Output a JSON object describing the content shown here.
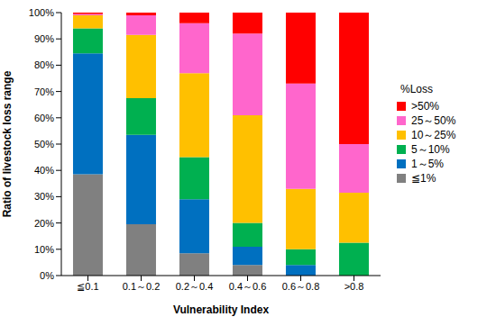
{
  "chart_data": {
    "type": "bar",
    "stacked": true,
    "grid": false,
    "legend": "right",
    "legend_title": "%Loss",
    "x_label": "Vulnerability Index",
    "y_label": "Ratio of livestock loss range",
    "categories": [
      "≦0.1",
      "0.1～0.2",
      "0.2～0.4",
      "0.4～0.6",
      "0.6～0.8",
      ">0.8"
    ],
    "ylim": [
      0,
      100
    ],
    "yticks": [
      {
        "value": 0,
        "label": "0%"
      },
      {
        "value": 10,
        "label": "10%"
      },
      {
        "value": 20,
        "label": "20%"
      },
      {
        "value": 30,
        "label": "30%"
      },
      {
        "value": 40,
        "label": "40%"
      },
      {
        "value": 50,
        "label": "50%"
      },
      {
        "value": 60,
        "label": "60%"
      },
      {
        "value": 70,
        "label": "70%"
      },
      {
        "value": 80,
        "label": "80%"
      },
      {
        "value": 90,
        "label": "90%"
      },
      {
        "value": 100,
        "label": "100%"
      }
    ],
    "series": [
      {
        "name": "≦1%",
        "color": "#808080",
        "values": [
          38.5,
          19.5,
          8.5,
          4,
          0,
          0
        ]
      },
      {
        "name": "1～5%",
        "color": "#0070c0",
        "values": [
          46,
          34,
          20.5,
          7,
          4,
          0
        ]
      },
      {
        "name": "5～10%",
        "color": "#00b050",
        "values": [
          9.5,
          14,
          16,
          9,
          6,
          12.5
        ]
      },
      {
        "name": "10～25%",
        "color": "#ffc000",
        "values": [
          5,
          24,
          32,
          41,
          23,
          19
        ]
      },
      {
        "name": "25～50%",
        "color": "#ff66cc",
        "values": [
          0.5,
          7.5,
          19,
          31,
          40,
          18.5
        ]
      },
      {
        "name": ">50%",
        "color": "#ff0000",
        "values": [
          0.5,
          1,
          4,
          8,
          27,
          50
        ]
      }
    ]
  }
}
